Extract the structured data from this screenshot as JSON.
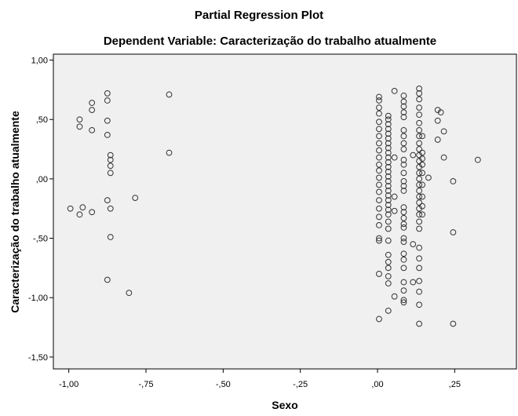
{
  "chart_data": {
    "type": "scatter",
    "title": "Partial Regression Plot",
    "subtitle": "Dependent Variable: Caracterização do trabalho atualmente",
    "xlabel": "Sexo",
    "ylabel": "Caracterização do trabalho atualmente",
    "xlim": [
      -1.05,
      0.45
    ],
    "ylim": [
      -1.6,
      1.05
    ],
    "xticks": [
      {
        "value": -1.0,
        "label": "-1,00"
      },
      {
        "value": -0.75,
        "label": "-,75"
      },
      {
        "value": -0.5,
        "label": "-,50"
      },
      {
        "value": -0.25,
        "label": "-,25"
      },
      {
        "value": 0.0,
        "label": ",00"
      },
      {
        "value": 0.25,
        "label": ",25"
      }
    ],
    "yticks": [
      {
        "value": 1.0,
        "label": "1,00"
      },
      {
        "value": 0.5,
        "label": ",50"
      },
      {
        "value": 0.0,
        "label": ",00"
      },
      {
        "value": -0.5,
        "label": "-,50"
      },
      {
        "value": -1.0,
        "label": "-1,00"
      },
      {
        "value": -1.5,
        "label": "-1,50"
      }
    ],
    "grid": false,
    "background": "#f0f0f0",
    "marker": "open-circle",
    "points": [
      [
        -0.995,
        -0.25
      ],
      [
        -0.965,
        -0.3
      ],
      [
        -0.955,
        -0.24
      ],
      [
        -0.925,
        -0.28
      ],
      [
        -0.965,
        0.5
      ],
      [
        -0.965,
        0.44
      ],
      [
        -0.925,
        0.64
      ],
      [
        -0.925,
        0.58
      ],
      [
        -0.925,
        0.41
      ],
      [
        -0.875,
        0.72
      ],
      [
        -0.875,
        0.66
      ],
      [
        -0.875,
        0.49
      ],
      [
        -0.875,
        0.37
      ],
      [
        -0.875,
        -0.18
      ],
      [
        -0.875,
        -0.85
      ],
      [
        -0.865,
        0.2
      ],
      [
        -0.865,
        0.16
      ],
      [
        -0.865,
        0.11
      ],
      [
        -0.865,
        0.05
      ],
      [
        -0.865,
        -0.25
      ],
      [
        -0.865,
        -0.49
      ],
      [
        -0.785,
        -0.16
      ],
      [
        -0.805,
        -0.96
      ],
      [
        -0.675,
        0.71
      ],
      [
        -0.675,
        0.22
      ],
      [
        0.005,
        0.69
      ],
      [
        0.005,
        0.66
      ],
      [
        0.005,
        0.6
      ],
      [
        0.005,
        0.55
      ],
      [
        0.005,
        0.48
      ],
      [
        0.005,
        0.42
      ],
      [
        0.005,
        0.36
      ],
      [
        0.005,
        0.3
      ],
      [
        0.005,
        0.24
      ],
      [
        0.005,
        0.18
      ],
      [
        0.005,
        0.12
      ],
      [
        0.005,
        0.07
      ],
      [
        0.005,
        0.01
      ],
      [
        0.005,
        -0.05
      ],
      [
        0.005,
        -0.11
      ],
      [
        0.005,
        -0.18
      ],
      [
        0.005,
        -0.25
      ],
      [
        0.005,
        -0.32
      ],
      [
        0.005,
        -0.39
      ],
      [
        0.005,
        -0.5
      ],
      [
        0.005,
        -0.52
      ],
      [
        0.005,
        -0.8
      ],
      [
        0.005,
        -1.18
      ],
      [
        0.035,
        0.53
      ],
      [
        0.035,
        0.5
      ],
      [
        0.035,
        0.46
      ],
      [
        0.035,
        0.42
      ],
      [
        0.035,
        0.38
      ],
      [
        0.035,
        0.34
      ],
      [
        0.035,
        0.3
      ],
      [
        0.035,
        0.26
      ],
      [
        0.035,
        0.22
      ],
      [
        0.035,
        0.18
      ],
      [
        0.035,
        0.14
      ],
      [
        0.035,
        0.1
      ],
      [
        0.035,
        0.06
      ],
      [
        0.035,
        0.02
      ],
      [
        0.035,
        -0.02
      ],
      [
        0.035,
        -0.06
      ],
      [
        0.035,
        -0.1
      ],
      [
        0.035,
        -0.14
      ],
      [
        0.035,
        -0.18
      ],
      [
        0.035,
        -0.22
      ],
      [
        0.035,
        -0.26
      ],
      [
        0.035,
        -0.3
      ],
      [
        0.035,
        -0.36
      ],
      [
        0.035,
        -0.42
      ],
      [
        0.035,
        -0.52
      ],
      [
        0.035,
        -0.64
      ],
      [
        0.035,
        -0.7
      ],
      [
        0.035,
        -0.75
      ],
      [
        0.035,
        -0.82
      ],
      [
        0.035,
        -0.88
      ],
      [
        0.035,
        -1.11
      ],
      [
        0.055,
        0.74
      ],
      [
        0.055,
        0.18
      ],
      [
        0.055,
        -0.15
      ],
      [
        0.055,
        -0.27
      ],
      [
        0.055,
        -0.99
      ],
      [
        0.085,
        0.7
      ],
      [
        0.085,
        0.65
      ],
      [
        0.085,
        0.61
      ],
      [
        0.085,
        0.56
      ],
      [
        0.085,
        0.52
      ],
      [
        0.085,
        0.41
      ],
      [
        0.085,
        0.36
      ],
      [
        0.085,
        0.3
      ],
      [
        0.085,
        0.25
      ],
      [
        0.085,
        0.16
      ],
      [
        0.085,
        0.12
      ],
      [
        0.085,
        0.05
      ],
      [
        0.085,
        -0.02
      ],
      [
        0.085,
        -0.06
      ],
      [
        0.085,
        -0.1
      ],
      [
        0.085,
        -0.24
      ],
      [
        0.085,
        -0.28
      ],
      [
        0.085,
        -0.33
      ],
      [
        0.085,
        -0.38
      ],
      [
        0.085,
        -0.41
      ],
      [
        0.085,
        -0.5
      ],
      [
        0.085,
        -0.53
      ],
      [
        0.085,
        -0.63
      ],
      [
        0.085,
        -0.68
      ],
      [
        0.085,
        -0.75
      ],
      [
        0.085,
        -0.87
      ],
      [
        0.085,
        -0.94
      ],
      [
        0.085,
        -1.02
      ],
      [
        0.085,
        -1.04
      ],
      [
        0.115,
        0.2
      ],
      [
        0.115,
        -0.55
      ],
      [
        0.115,
        -0.87
      ],
      [
        0.135,
        0.76
      ],
      [
        0.135,
        0.72
      ],
      [
        0.135,
        0.67
      ],
      [
        0.135,
        0.6
      ],
      [
        0.135,
        0.54
      ],
      [
        0.135,
        0.47
      ],
      [
        0.135,
        0.41
      ],
      [
        0.135,
        0.36
      ],
      [
        0.135,
        0.3
      ],
      [
        0.135,
        0.25
      ],
      [
        0.135,
        0.2
      ],
      [
        0.135,
        0.15
      ],
      [
        0.135,
        0.1
      ],
      [
        0.135,
        0.05
      ],
      [
        0.135,
        0.0
      ],
      [
        0.135,
        -0.05
      ],
      [
        0.135,
        -0.1
      ],
      [
        0.135,
        -0.15
      ],
      [
        0.135,
        -0.2
      ],
      [
        0.135,
        -0.25
      ],
      [
        0.135,
        -0.3
      ],
      [
        0.135,
        -0.36
      ],
      [
        0.135,
        -0.42
      ],
      [
        0.135,
        -0.58
      ],
      [
        0.135,
        -0.67
      ],
      [
        0.135,
        -0.75
      ],
      [
        0.135,
        -0.86
      ],
      [
        0.135,
        -0.95
      ],
      [
        0.135,
        -1.06
      ],
      [
        0.135,
        -1.22
      ],
      [
        0.145,
        0.36
      ],
      [
        0.145,
        0.22
      ],
      [
        0.145,
        0.17
      ],
      [
        0.145,
        0.12
      ],
      [
        0.145,
        0.05
      ],
      [
        0.145,
        -0.05
      ],
      [
        0.145,
        -0.15
      ],
      [
        0.145,
        -0.23
      ],
      [
        0.145,
        -0.3
      ],
      [
        0.165,
        0.01
      ],
      [
        0.195,
        0.58
      ],
      [
        0.195,
        0.49
      ],
      [
        0.195,
        0.33
      ],
      [
        0.205,
        0.56
      ],
      [
        0.215,
        0.4
      ],
      [
        0.215,
        0.18
      ],
      [
        0.245,
        -0.02
      ],
      [
        0.245,
        -0.45
      ],
      [
        0.245,
        -1.22
      ],
      [
        0.325,
        0.16
      ]
    ]
  }
}
